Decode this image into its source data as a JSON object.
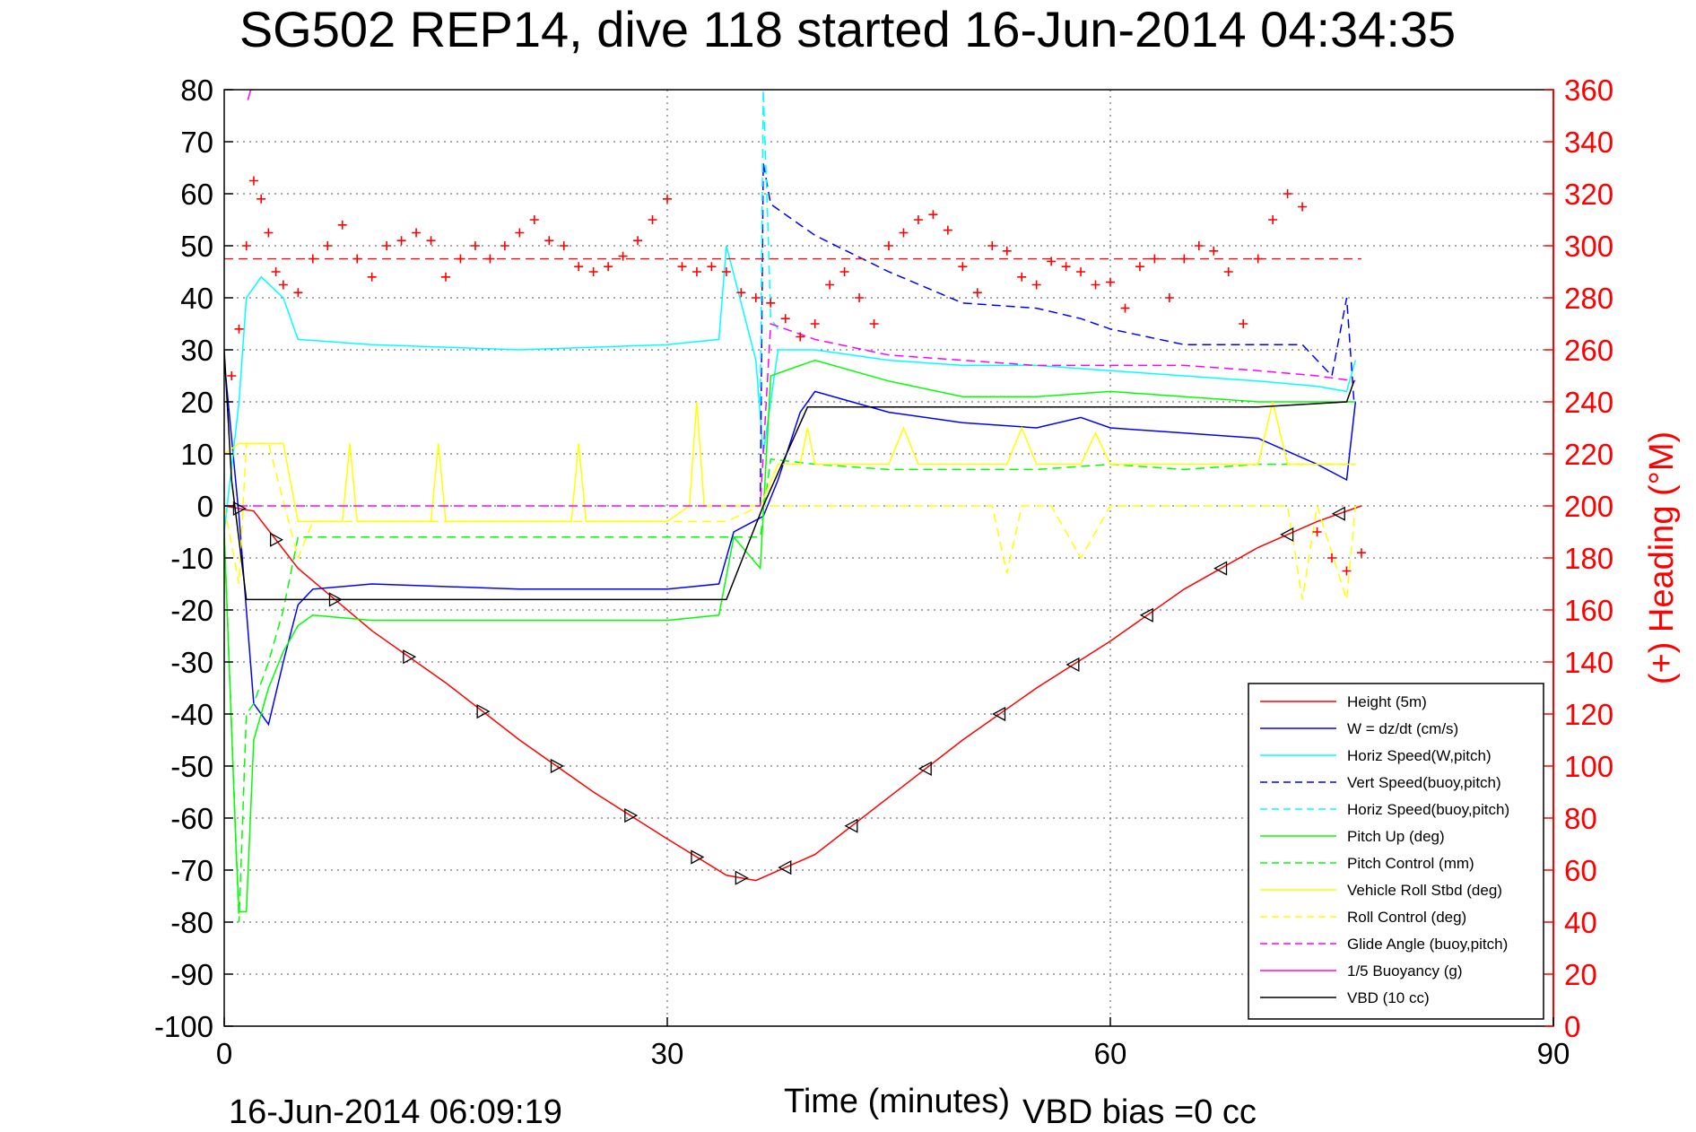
{
  "chart_data": {
    "type": "line",
    "title": "SG502 REP14, dive 118 started 16-Jun-2014 04:34:35",
    "xlabel": "Time (minutes)",
    "ylabel": "",
    "y2label": "(+) Heading (°M)",
    "xlim": [
      0,
      90
    ],
    "ylim": [
      -100,
      80
    ],
    "y2lim": [
      0,
      360
    ],
    "xticks": [
      "0",
      "30",
      "60",
      "90"
    ],
    "yticks": [
      "80",
      "70",
      "60",
      "50",
      "40",
      "30",
      "20",
      "10",
      "0",
      "-10",
      "-20",
      "-30",
      "-40",
      "-50",
      "-60",
      "-70",
      "-80",
      "-90",
      "-100"
    ],
    "y2ticks": [
      "360",
      "340",
      "320",
      "300",
      "280",
      "260",
      "240",
      "220",
      "200",
      "180",
      "160",
      "140",
      "120",
      "100",
      "80",
      "60",
      "40",
      "20",
      "0"
    ],
    "grid": true,
    "legend_position": "bottom-right",
    "footer_left": "16-Jun-2014 06:09:19",
    "footer_right": "VBD bias =0 cc",
    "series": [
      {
        "name": "Height (5m)",
        "color": "#ff0000",
        "style": "solid",
        "x": [
          0,
          2,
          5,
          10,
          15,
          20,
          25,
          30,
          34,
          36,
          40,
          45,
          50,
          55,
          60,
          65,
          70,
          74,
          77
        ],
        "y": [
          0,
          -1,
          -12,
          -24,
          -34,
          -45,
          -55,
          -64,
          -71,
          -72,
          -67,
          -56,
          -45,
          -35,
          -26,
          -16,
          -8,
          -3,
          0
        ]
      },
      {
        "name": "W = dz/dt (cm/s)",
        "color": "#0000ff",
        "style": "solid",
        "x": [
          0,
          1,
          2,
          3,
          4,
          5,
          6,
          10,
          20,
          30,
          33.5,
          34.5,
          36.5,
          37.5,
          39,
          40,
          45,
          50,
          55,
          58,
          60,
          65,
          70,
          74,
          76,
          76.6
        ],
        "y": [
          28,
          -2,
          -38,
          -42,
          -30,
          -19,
          -16,
          -15,
          -16,
          -16,
          -15,
          -5,
          -2,
          5,
          18,
          22,
          18,
          16,
          15,
          17,
          15,
          14,
          13,
          8,
          5,
          20
        ]
      },
      {
        "name": "Horiz Speed(W,pitch)",
        "color": "#00ffff",
        "style": "solid",
        "x": [
          0,
          1,
          1.5,
          2.5,
          4,
          5,
          10,
          20,
          30,
          33.5,
          34,
          36,
          36.5,
          37.5,
          40,
          45,
          50,
          55,
          60,
          65,
          70,
          74,
          76,
          76.6
        ],
        "y": [
          -5,
          20,
          40,
          44,
          40,
          32,
          31,
          30,
          31,
          32,
          50,
          28,
          10,
          30,
          30,
          28,
          27,
          27,
          26,
          25,
          24,
          23,
          22,
          28
        ]
      },
      {
        "name": "Vert Speed(buoy,pitch)",
        "color": "#0000ff",
        "style": "dashed",
        "x": [
          36.3,
          36.5,
          37,
          40,
          45,
          50,
          55,
          58,
          60,
          65,
          70,
          73,
          75,
          76,
          76.5
        ],
        "y": [
          0,
          66,
          58,
          52,
          45,
          39,
          38,
          36,
          34,
          31,
          31,
          31,
          25,
          40,
          20
        ]
      },
      {
        "name": "Horiz Speed(buoy,pitch)",
        "color": "#00ffff",
        "style": "dashed",
        "x": [
          36.3,
          36.5,
          36.8,
          37,
          37.5
        ],
        "y": [
          20,
          80,
          55,
          36,
          34
        ]
      },
      {
        "name": "Pitch Up (deg)",
        "color": "#00ff00",
        "style": "solid",
        "x": [
          0,
          0.8,
          1,
          1.5,
          2,
          3,
          4,
          5,
          6,
          10,
          20,
          30,
          33.5,
          34.5,
          36.3,
          37,
          40,
          45,
          50,
          55,
          60,
          65,
          70,
          74,
          76.6
        ],
        "y": [
          -5,
          -66,
          -78,
          -78,
          -45,
          -35,
          -28,
          -23,
          -21,
          -22,
          -22,
          -22,
          -21,
          -6,
          -12,
          25,
          28,
          24,
          21,
          21,
          22,
          21,
          20,
          20,
          20
        ]
      },
      {
        "name": "Pitch Control (mm)",
        "color": "#00ff00",
        "style": "dashed",
        "x": [
          0,
          1,
          1.5,
          2,
          3,
          4,
          5,
          10,
          20,
          30,
          33.5,
          34,
          36.3,
          37,
          40,
          45,
          50,
          55,
          60,
          65,
          70,
          74,
          76.6
        ],
        "y": [
          -5,
          -80,
          -40,
          -38,
          -30,
          -20,
          -6,
          -6,
          -6,
          -6,
          -6,
          -6,
          -6,
          9,
          8,
          7,
          7,
          7,
          8,
          7,
          8,
          8,
          8
        ]
      },
      {
        "name": "Vehicle Roll Stbd (deg)",
        "color": "#ffff00",
        "style": "solid",
        "x": [
          0,
          1,
          2,
          3,
          4,
          5,
          8,
          8.5,
          9,
          10,
          14,
          14.5,
          15,
          20,
          23.5,
          24,
          24.5,
          30,
          31.5,
          32,
          32.5,
          34,
          36.3,
          37.5,
          39,
          39.5,
          40,
          45,
          46,
          47,
          50,
          53,
          54,
          55,
          58,
          59,
          60,
          65,
          70,
          71,
          72,
          74,
          76.6
        ],
        "y": [
          10,
          12,
          12,
          12,
          12,
          -3,
          -3,
          12,
          -3,
          -3,
          -3,
          12,
          -3,
          -3,
          -3,
          12,
          -3,
          -3,
          0,
          20,
          0,
          0,
          0,
          8,
          8,
          15,
          8,
          8,
          15,
          8,
          8,
          8,
          15,
          8,
          8,
          14,
          8,
          8,
          8,
          20,
          8,
          8,
          8
        ]
      },
      {
        "name": "Roll Control (deg)",
        "color": "#ffff00",
        "style": "dashed",
        "x": [
          0,
          1,
          1.5,
          3,
          5,
          6,
          10,
          20,
          30,
          34,
          36.3,
          38,
          40,
          45,
          50,
          52,
          53,
          54,
          56,
          58,
          60,
          65,
          70,
          72,
          73,
          74,
          76,
          76.6
        ],
        "y": [
          0,
          -15,
          12,
          12,
          -10,
          -3,
          -3,
          -3,
          -3,
          -3,
          0,
          0,
          0,
          0,
          0,
          0,
          -13,
          0,
          0,
          -10,
          0,
          0,
          0,
          0,
          -18,
          0,
          -18,
          0
        ]
      },
      {
        "name": "Glide Angle (buoy,pitch)",
        "color": "#ff00ff",
        "style": "dashed",
        "x": [
          0,
          10,
          20,
          30,
          36.3,
          37,
          40,
          45,
          50,
          55,
          60,
          65,
          70,
          74,
          76.6
        ],
        "y": [
          0,
          0,
          0,
          0,
          0,
          35,
          32,
          29,
          28,
          27,
          27,
          27,
          26,
          25,
          24
        ]
      },
      {
        "name": "1/5 Buoyancy (g)",
        "color": "#ff00ff",
        "style": "solid",
        "x": [
          1.6,
          1.8,
          2.0
        ],
        "y": [
          78,
          80,
          80
        ]
      },
      {
        "name": "VBD (10 cc)",
        "color": "#000000",
        "style": "solid",
        "x": [
          0,
          0.5,
          1.5,
          2,
          10,
          20,
          30,
          34,
          36.5,
          39.5,
          40,
          50,
          60,
          70,
          76,
          76.5
        ],
        "y": [
          30,
          5,
          -18,
          -18,
          -18,
          -18,
          -18,
          -18,
          0,
          19,
          19,
          19,
          19,
          19,
          20,
          24
        ]
      },
      {
        "name": "Heading",
        "color": "#ff0000",
        "style": "markers",
        "axis": "right",
        "x": [
          0.5,
          1,
          1.5,
          2,
          2.5,
          3,
          3.5,
          4,
          5,
          6,
          7,
          8,
          9,
          10,
          11,
          12,
          13,
          14,
          15,
          16,
          17,
          18,
          19,
          20,
          21,
          22,
          23,
          24,
          25,
          26,
          27,
          28,
          29,
          30,
          31,
          32,
          33,
          34,
          35,
          36,
          37,
          38,
          39,
          40,
          41,
          42,
          43,
          44,
          45,
          46,
          47,
          48,
          49,
          50,
          51,
          52,
          53,
          54,
          55,
          56,
          57,
          58,
          59,
          60,
          61,
          62,
          63,
          64,
          65,
          66,
          67,
          68,
          69,
          70,
          71,
          72,
          73,
          74,
          75,
          76,
          77
        ],
        "y": [
          250,
          268,
          300,
          325,
          318,
          305,
          290,
          285,
          282,
          295,
          300,
          308,
          295,
          288,
          300,
          302,
          305,
          302,
          288,
          295,
          300,
          295,
          300,
          305,
          310,
          302,
          300,
          292,
          290,
          292,
          296,
          302,
          310,
          318,
          292,
          290,
          292,
          290,
          282,
          280,
          278,
          272,
          265,
          270,
          285,
          290,
          280,
          270,
          300,
          305,
          310,
          312,
          306,
          292,
          282,
          300,
          298,
          288,
          285,
          294,
          292,
          290,
          285,
          286,
          276,
          292,
          295,
          280,
          295,
          300,
          298,
          290,
          270,
          295,
          310,
          320,
          315,
          190,
          180,
          175,
          182
        ]
      }
    ]
  }
}
